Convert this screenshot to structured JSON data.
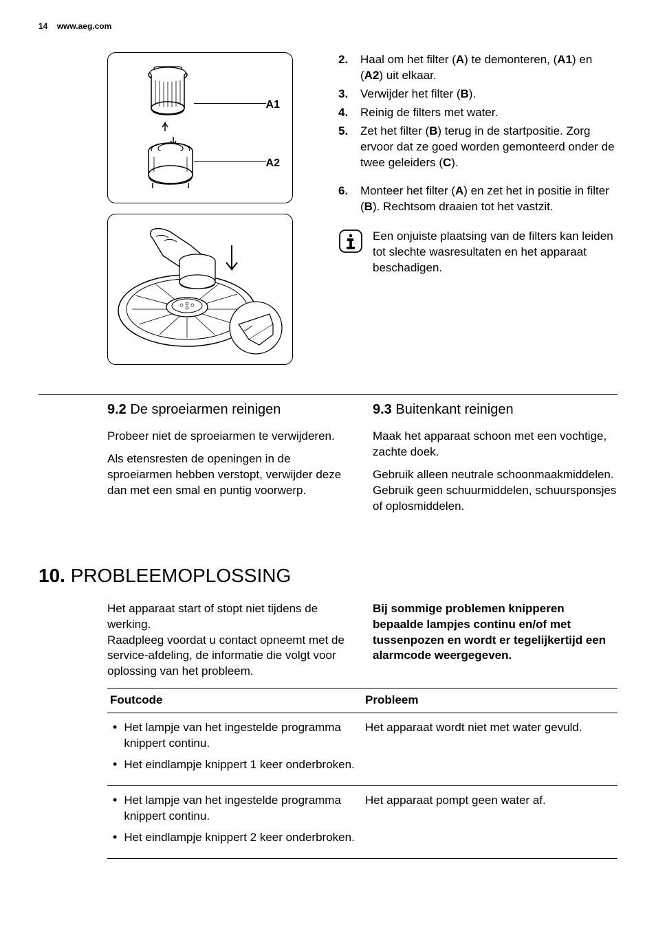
{
  "header": {
    "page_number": "14",
    "url": "www.aeg.com"
  },
  "figure1": {
    "label_a1": "A1",
    "label_a2": "A2"
  },
  "steps_right": {
    "items": [
      {
        "num": "2.",
        "html": "Haal om het filter (<b>A</b>) te demonteren, (<b>A1</b>) en (<b>A2</b>) uit elkaar."
      },
      {
        "num": "3.",
        "html": "Verwijder het filter (<b>B</b>)."
      },
      {
        "num": "4.",
        "html": "Reinig de filters met water."
      },
      {
        "num": "5.",
        "html": "Zet het filter (<b>B</b>) terug in de startpositie. Zorg ervoor dat ze goed worden gemonteerd onder de twee geleiders (<b>C</b>)."
      }
    ],
    "step6": {
      "num": "6.",
      "html": "Monteer het filter (<b>A</b>) en zet het in positie in filter (<b>B</b>). Rechtsom draaien tot het vastzit."
    }
  },
  "info_note": "Een onjuiste plaatsing van de filters kan leiden tot slechte wasresultaten en het apparaat beschadigen.",
  "section_9_2": {
    "num": "9.2",
    "title": "De sproeiarmen reinigen",
    "p1": "Probeer niet de sproeiarmen te verwijderen.",
    "p2": "Als etensresten de openingen in de sproeiarmen hebben verstopt, verwijder deze dan met een smal en puntig voorwerp."
  },
  "section_9_3": {
    "num": "9.3",
    "title": "Buitenkant reinigen",
    "p1": "Maak het apparaat schoon met een vochtige, zachte doek.",
    "p2": "Gebruik alleen neutrale schoonmaakmiddelen. Gebruik geen schuurmiddelen, schuursponsjes of oplosmiddelen."
  },
  "section_10": {
    "num": "10.",
    "title": "PROBLEEMOPLOSSING",
    "left_p1": "Het apparaat start of stopt niet tijdens de werking.",
    "left_p2": "Raadpleeg voordat u contact opneemt met de service-afdeling, de informatie die volgt voor oplossing van het probleem.",
    "right_p1": "Bij sommige problemen knipperen bepaalde lampjes continu en/of met tussenpozen en wordt er tegelijkertijd een alarmcode weergegeven."
  },
  "fault_table": {
    "header_col1": "Foutcode",
    "header_col2": "Probleem",
    "rows": [
      {
        "bullets": [
          "Het lampje van het ingestelde programma knippert continu.",
          "Het eindlampje knippert 1 keer onderbroken."
        ],
        "problem": "Het apparaat wordt niet met water gevuld."
      },
      {
        "bullets": [
          "Het lampje van het ingestelde programma knippert continu.",
          "Het eindlampje knippert 2 keer onderbroken."
        ],
        "problem": "Het apparaat pompt geen water af."
      }
    ]
  }
}
